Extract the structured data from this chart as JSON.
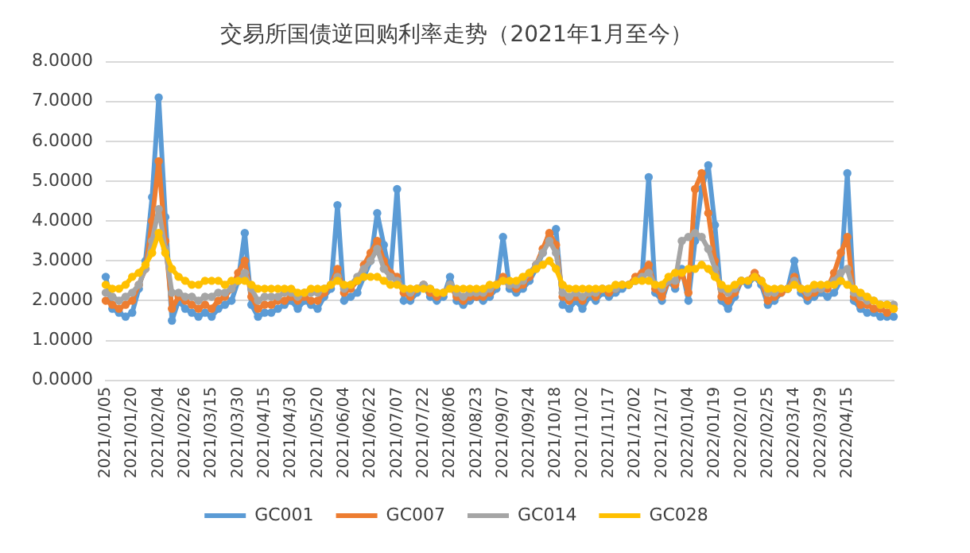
{
  "chart_data": {
    "type": "line",
    "title": "交易所国债逆回购利率走势（2021年1月至今）",
    "categories": [
      "2021/01/05",
      null,
      null,
      null,
      "2021/01/20",
      null,
      null,
      null,
      "2021/02/04",
      null,
      null,
      null,
      "2021/02/26",
      null,
      null,
      null,
      "2021/03/15",
      null,
      null,
      null,
      "2021/03/30",
      null,
      null,
      null,
      "2021/04/15",
      null,
      null,
      null,
      "2021/04/30",
      null,
      null,
      null,
      "2021/05/20",
      null,
      null,
      null,
      "2021/06/04",
      null,
      null,
      null,
      "2021/06/22",
      null,
      null,
      null,
      "2021/07/07",
      null,
      null,
      null,
      "2021/07/22",
      null,
      null,
      null,
      "2021/08/06",
      null,
      null,
      null,
      "2021/08/23",
      null,
      null,
      null,
      "2021/09/07",
      null,
      null,
      null,
      "2021/09/24",
      null,
      null,
      null,
      "2021/10/18",
      null,
      null,
      null,
      "2021/11/02",
      null,
      null,
      null,
      "2021/11/17",
      null,
      null,
      null,
      "2021/12/02",
      null,
      null,
      null,
      "2021/12/17",
      null,
      null,
      null,
      "2022/01/04",
      null,
      null,
      null,
      "2022/01/19",
      null,
      null,
      null,
      "2022/02/10",
      null,
      null,
      null,
      "2022/02/25",
      null,
      null,
      null,
      "2022/03/14",
      null,
      null,
      null,
      "2022/03/29",
      null,
      null,
      null,
      "2022/04/15",
      null,
      null,
      null,
      null,
      null,
      null,
      null
    ],
    "series": [
      {
        "name": "GC001",
        "color": "#5b9bd5",
        "values": [
          2.6,
          1.8,
          1.7,
          1.6,
          1.7,
          2.3,
          3.0,
          4.6,
          7.1,
          4.1,
          1.5,
          2.0,
          1.8,
          1.7,
          1.6,
          1.7,
          1.6,
          1.8,
          1.9,
          2.0,
          2.5,
          3.7,
          1.9,
          1.6,
          1.7,
          1.7,
          1.8,
          1.9,
          2.0,
          1.8,
          2.0,
          1.9,
          1.8,
          2.1,
          2.3,
          4.4,
          2.0,
          2.1,
          2.2,
          2.6,
          3.0,
          4.2,
          3.4,
          2.6,
          4.8,
          2.0,
          2.0,
          2.2,
          2.4,
          2.1,
          2.0,
          2.1,
          2.6,
          2.0,
          1.9,
          2.0,
          2.1,
          2.0,
          2.1,
          2.3,
          3.6,
          2.3,
          2.2,
          2.3,
          2.5,
          2.8,
          3.2,
          3.6,
          3.8,
          1.9,
          1.8,
          2.0,
          1.8,
          2.1,
          2.0,
          2.2,
          2.1,
          2.2,
          2.3,
          2.4,
          2.5,
          2.6,
          5.1,
          2.2,
          2.0,
          2.5,
          2.3,
          2.8,
          2.0,
          3.5,
          4.8,
          5.4,
          3.9,
          2.0,
          1.8,
          2.1,
          2.5,
          2.4,
          2.6,
          2.4,
          1.9,
          2.0,
          2.2,
          2.3,
          3.0,
          2.2,
          2.0,
          2.1,
          2.2,
          2.1,
          2.2,
          2.5,
          5.2,
          2.0,
          1.8,
          1.7,
          1.7,
          1.6,
          1.6,
          1.6
        ]
      },
      {
        "name": "GC007",
        "color": "#ed7d31",
        "values": [
          2.0,
          1.9,
          1.8,
          1.9,
          2.0,
          2.4,
          2.8,
          4.0,
          5.5,
          3.5,
          1.8,
          2.1,
          2.0,
          1.9,
          1.8,
          1.9,
          1.8,
          2.0,
          2.1,
          2.3,
          2.7,
          3.0,
          2.1,
          1.8,
          1.9,
          1.9,
          2.0,
          2.0,
          2.1,
          2.0,
          2.1,
          2.0,
          2.0,
          2.2,
          2.4,
          2.8,
          2.2,
          2.3,
          2.5,
          2.9,
          3.2,
          3.5,
          3.0,
          2.7,
          2.6,
          2.2,
          2.1,
          2.3,
          2.4,
          2.2,
          2.1,
          2.2,
          2.4,
          2.1,
          2.0,
          2.1,
          2.1,
          2.1,
          2.2,
          2.4,
          2.6,
          2.4,
          2.3,
          2.4,
          2.6,
          2.9,
          3.3,
          3.7,
          3.4,
          2.1,
          2.0,
          2.1,
          2.0,
          2.2,
          2.1,
          2.3,
          2.2,
          2.3,
          2.4,
          2.4,
          2.6,
          2.7,
          2.9,
          2.3,
          2.1,
          2.5,
          2.4,
          2.7,
          2.2,
          4.8,
          5.2,
          4.2,
          3.0,
          2.1,
          2.0,
          2.2,
          2.5,
          2.5,
          2.7,
          2.5,
          2.0,
          2.1,
          2.2,
          2.3,
          2.6,
          2.3,
          2.1,
          2.2,
          2.3,
          2.3,
          2.7,
          3.2,
          3.6,
          2.1,
          1.9,
          1.9,
          1.8,
          1.8,
          1.7,
          1.8
        ]
      },
      {
        "name": "GC014",
        "color": "#a5a5a5",
        "values": [
          2.2,
          2.1,
          2.0,
          2.1,
          2.2,
          2.4,
          2.8,
          3.5,
          4.3,
          3.3,
          2.2,
          2.2,
          2.1,
          2.1,
          2.0,
          2.1,
          2.1,
          2.2,
          2.2,
          2.3,
          2.5,
          2.7,
          2.3,
          2.0,
          2.1,
          2.1,
          2.1,
          2.2,
          2.2,
          2.1,
          2.2,
          2.2,
          2.2,
          2.3,
          2.4,
          2.6,
          2.3,
          2.4,
          2.6,
          2.8,
          3.0,
          3.3,
          2.8,
          2.6,
          2.5,
          2.3,
          2.2,
          2.3,
          2.4,
          2.3,
          2.2,
          2.2,
          2.4,
          2.2,
          2.1,
          2.2,
          2.2,
          2.2,
          2.3,
          2.4,
          2.5,
          2.4,
          2.4,
          2.5,
          2.7,
          2.9,
          3.2,
          3.5,
          3.2,
          2.2,
          2.1,
          2.2,
          2.1,
          2.2,
          2.2,
          2.3,
          2.3,
          2.3,
          2.4,
          2.4,
          2.5,
          2.6,
          2.7,
          2.4,
          2.3,
          2.5,
          2.5,
          3.5,
          3.6,
          3.7,
          3.6,
          3.3,
          2.8,
          2.3,
          2.2,
          2.3,
          2.5,
          2.5,
          2.6,
          2.5,
          2.2,
          2.2,
          2.3,
          2.3,
          2.5,
          2.3,
          2.2,
          2.3,
          2.3,
          2.4,
          2.5,
          2.7,
          2.8,
          2.2,
          2.1,
          2.0,
          2.0,
          1.9,
          1.9,
          1.9
        ]
      },
      {
        "name": "GC028",
        "color": "#ffc000",
        "values": [
          2.4,
          2.3,
          2.3,
          2.4,
          2.6,
          2.7,
          2.9,
          3.2,
          3.7,
          3.2,
          2.8,
          2.6,
          2.5,
          2.4,
          2.4,
          2.5,
          2.5,
          2.5,
          2.4,
          2.5,
          2.5,
          2.5,
          2.4,
          2.3,
          2.3,
          2.3,
          2.3,
          2.3,
          2.3,
          2.2,
          2.2,
          2.3,
          2.3,
          2.3,
          2.4,
          2.5,
          2.4,
          2.4,
          2.5,
          2.6,
          2.6,
          2.6,
          2.5,
          2.4,
          2.4,
          2.3,
          2.3,
          2.3,
          2.3,
          2.3,
          2.2,
          2.2,
          2.3,
          2.3,
          2.3,
          2.3,
          2.3,
          2.3,
          2.4,
          2.4,
          2.5,
          2.5,
          2.5,
          2.6,
          2.7,
          2.8,
          2.9,
          3.0,
          2.8,
          2.4,
          2.3,
          2.3,
          2.3,
          2.3,
          2.3,
          2.3,
          2.3,
          2.4,
          2.4,
          2.4,
          2.5,
          2.5,
          2.5,
          2.4,
          2.4,
          2.6,
          2.7,
          2.7,
          2.8,
          2.8,
          2.9,
          2.8,
          2.6,
          2.4,
          2.3,
          2.4,
          2.5,
          2.5,
          2.6,
          2.5,
          2.3,
          2.3,
          2.3,
          2.3,
          2.4,
          2.3,
          2.3,
          2.4,
          2.4,
          2.4,
          2.4,
          2.5,
          2.4,
          2.3,
          2.2,
          2.1,
          2.0,
          1.9,
          1.9,
          1.8
        ]
      }
    ],
    "ylim": [
      0,
      8
    ],
    "yticks": [
      {
        "value": 0,
        "label": "0.0000"
      },
      {
        "value": 1,
        "label": "1.0000"
      },
      {
        "value": 2,
        "label": "2.0000"
      },
      {
        "value": 3,
        "label": "3.0000"
      },
      {
        "value": 4,
        "label": "4.0000"
      },
      {
        "value": 5,
        "label": "5.0000"
      },
      {
        "value": 6,
        "label": "6.0000"
      },
      {
        "value": 7,
        "label": "7.0000"
      },
      {
        "value": 8,
        "label": "8.0000"
      }
    ],
    "grid": "y",
    "legend": "bottom",
    "marker": "circle",
    "line_style": "solid"
  }
}
